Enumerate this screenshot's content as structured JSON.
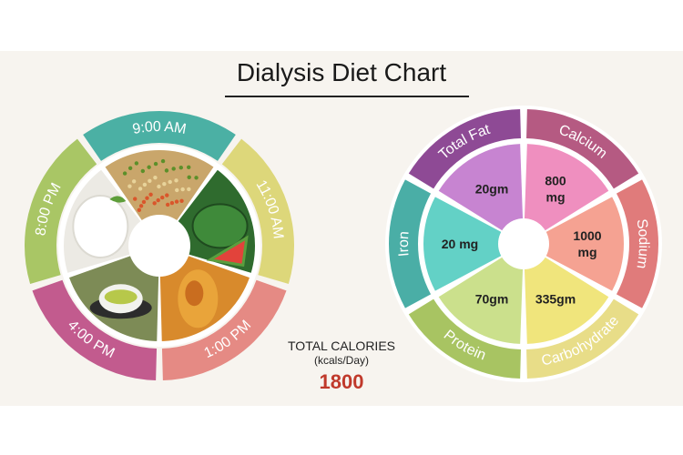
{
  "title": "Dialysis Diet Chart",
  "meals": [
    {
      "time": "9:00 AM",
      "color": "#4bb0a4",
      "food": "fried-rice"
    },
    {
      "time": "11:00 AM",
      "color": "#ddd77a",
      "food": "watermelon"
    },
    {
      "time": "1:00 PM",
      "color": "#e58a84",
      "food": "fish-curry"
    },
    {
      "time": "4:00 PM",
      "color": "#c25b8e",
      "food": "green-tea"
    },
    {
      "time": "8:00 PM",
      "color": "#a9c665",
      "food": "rice"
    }
  ],
  "nutrients": [
    {
      "name": "Calcium",
      "value": "800\nmg",
      "outer_color": "#b55a82",
      "inner_color": "#ef8fbf"
    },
    {
      "name": "Sodium",
      "value": "1000\nmg",
      "outer_color": "#e07b7b",
      "inner_color": "#f5a292"
    },
    {
      "name": "Carbohydrate",
      "value": "335gm",
      "outer_color": "#e8dd88",
      "inner_color": "#f0e57c"
    },
    {
      "name": "Protein",
      "value": "70gm",
      "outer_color": "#a8c462",
      "inner_color": "#cbe08c"
    },
    {
      "name": "Iron",
      "value": "20 mg",
      "outer_color": "#4aaea6",
      "inner_color": "#63d1c6"
    },
    {
      "name": "Total Fat",
      "value": "20gm",
      "outer_color": "#8e4a95",
      "inner_color": "#c784d1"
    }
  ],
  "totals": {
    "label": "TOTAL CALORIES",
    "unit": "(kcals/Day)",
    "value": "1800"
  }
}
